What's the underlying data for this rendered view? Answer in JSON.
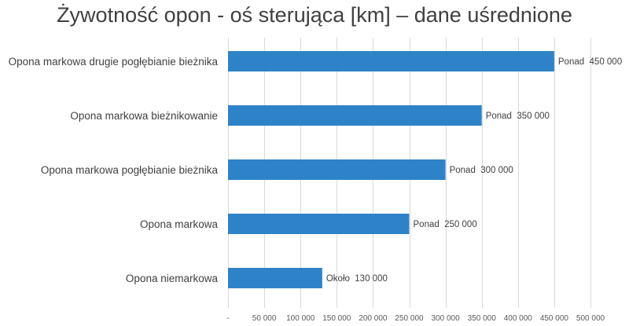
{
  "chart_data": {
    "type": "bar",
    "orientation": "horizontal",
    "title": "Żywotność opon - oś sterująca [km] – dane uśrednione",
    "categories": [
      "Opona markowa drugie pogłębianie bieżnika",
      "Opona markowa bieżnikowanie",
      "Opona markowa pogłębianie bieżnika",
      "Opona markowa",
      "Opona niemarkowa"
    ],
    "values": [
      450000,
      350000,
      300000,
      250000,
      130000
    ],
    "data_labels": [
      "Ponad  450 000",
      "Ponad  350 000",
      "Ponad  300 000",
      "Ponad  250 000",
      "Około  130 000"
    ],
    "x_ticks": [
      "-",
      "50 000",
      "100 000",
      "150 000",
      "200 000",
      "250 000",
      "300 000",
      "350 000",
      "400 000",
      "450 000",
      "500 000"
    ],
    "x_tick_values": [
      0,
      50000,
      100000,
      150000,
      200000,
      250000,
      300000,
      350000,
      400000,
      450000,
      500000
    ],
    "xlim": [
      0,
      500000
    ],
    "grid": true,
    "bar_color": "#2e83c8",
    "xlabel": "",
    "ylabel": ""
  }
}
